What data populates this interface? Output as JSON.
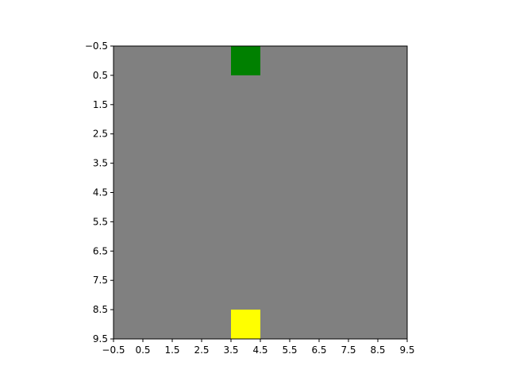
{
  "chart_data": {
    "type": "heatmap",
    "grid_size": [
      10,
      10
    ],
    "background_color": "#808080",
    "cells": [
      {
        "row": 0,
        "col": 4,
        "color": "#008000"
      },
      {
        "row": 9,
        "col": 4,
        "color": "#ffff00"
      }
    ],
    "xlim": [
      -0.5,
      9.5
    ],
    "ylim": [
      9.5,
      -0.5
    ],
    "xticks": [
      -0.5,
      0.5,
      1.5,
      2.5,
      3.5,
      4.5,
      5.5,
      6.5,
      7.5,
      8.5,
      9.5
    ],
    "yticks": [
      -0.5,
      0.5,
      1.5,
      2.5,
      3.5,
      4.5,
      5.5,
      6.5,
      7.5,
      8.5,
      9.5
    ],
    "xtick_labels": [
      "−0.5",
      "0.5",
      "1.5",
      "2.5",
      "3.5",
      "4.5",
      "5.5",
      "6.5",
      "7.5",
      "8.5",
      "9.5"
    ],
    "ytick_labels": [
      "−0.5",
      "0.5",
      "1.5",
      "2.5",
      "3.5",
      "4.5",
      "5.5",
      "6.5",
      "7.5",
      "8.5",
      "9.5"
    ],
    "grid": false,
    "title": "",
    "xlabel": "",
    "ylabel": ""
  }
}
